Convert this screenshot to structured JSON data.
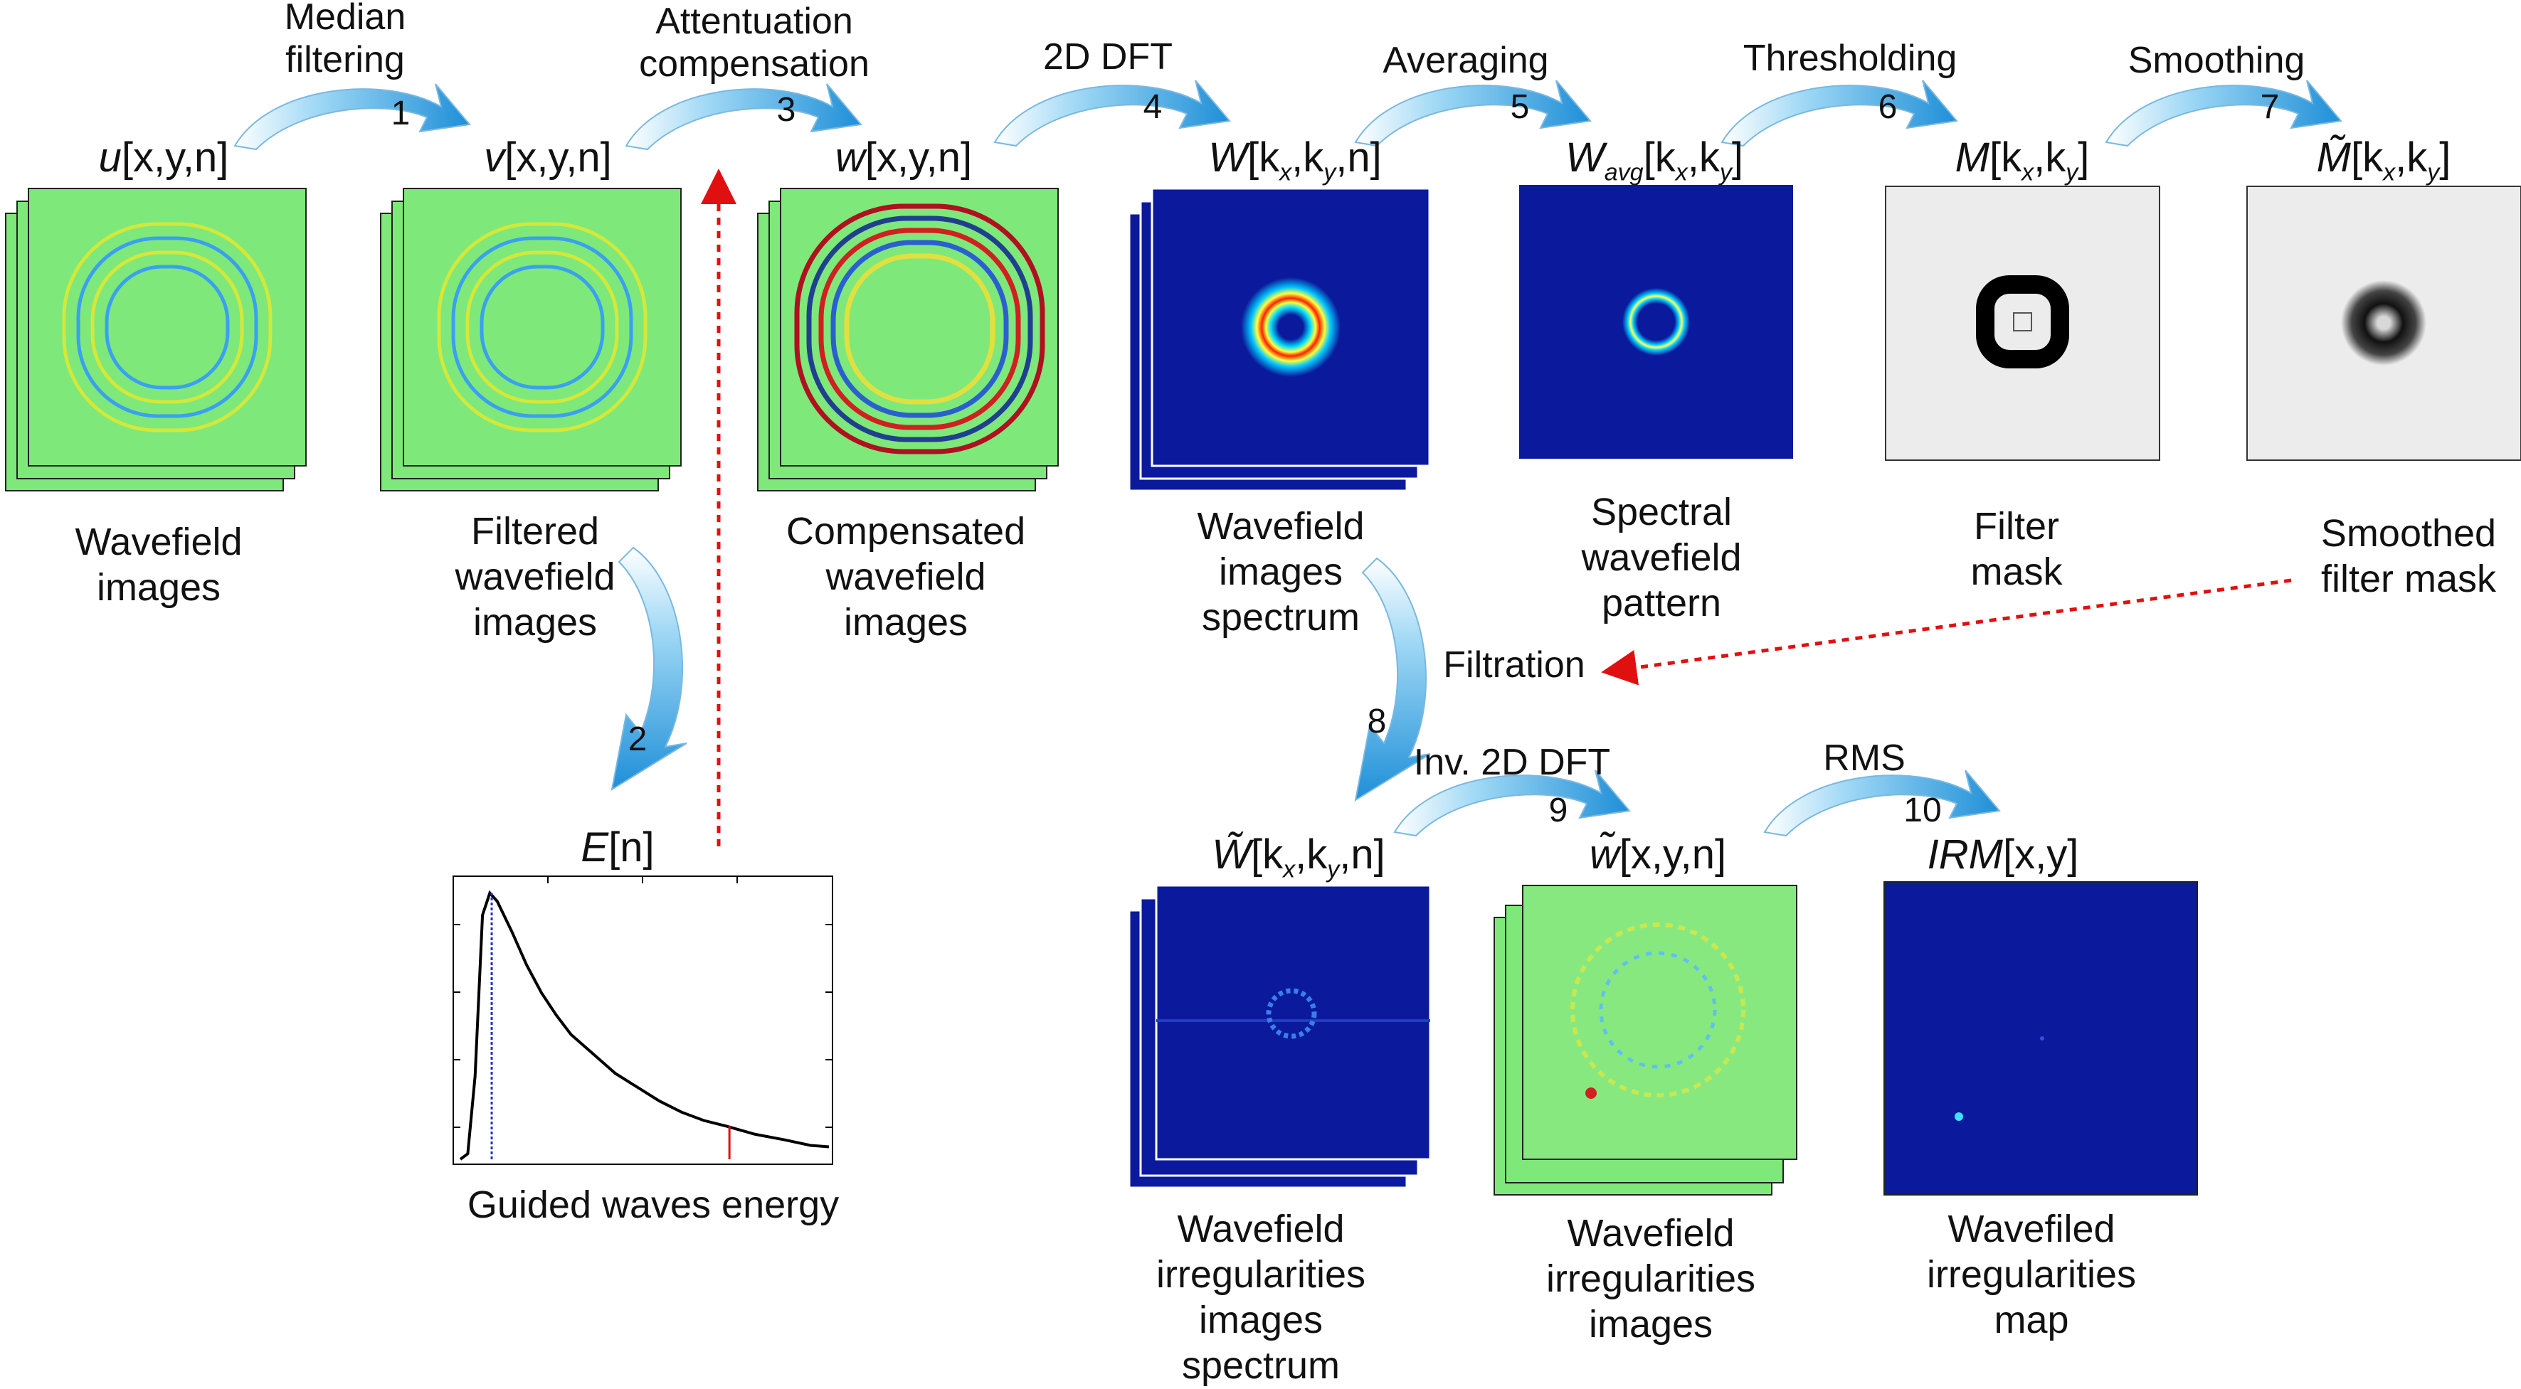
{
  "steps": [
    {
      "num": "1",
      "label": "Median\nfiltering"
    },
    {
      "num": "2",
      "label": ""
    },
    {
      "num": "3",
      "label": "Attentuation\ncompensation"
    },
    {
      "num": "4",
      "label": "2D DFT"
    },
    {
      "num": "5",
      "label": "Averaging"
    },
    {
      "num": "6",
      "label": "Thresholding"
    },
    {
      "num": "7",
      "label": "Smoothing"
    },
    {
      "num": "8",
      "label": ""
    },
    {
      "num": "9",
      "label": "Inv. 2D DFT"
    },
    {
      "num": "10",
      "label": "RMS"
    }
  ],
  "filtration_label": "Filtration",
  "nodes": {
    "u": {
      "base": "u",
      "args": "[x,y,n]",
      "caption": "Wavefield\nimages"
    },
    "v": {
      "base": "v",
      "args": "[x,y,n]",
      "caption": "Filtered\nwavefield\nimages"
    },
    "w": {
      "base": "w",
      "args": "[x,y,n]",
      "caption": "Compensated\nwavefield\nimages"
    },
    "W": {
      "base": "W",
      "args": "[k",
      "sub1": "x",
      "mid": ",k",
      "sub2": "y",
      "tail": ",n]",
      "caption": "Wavefield\nimages\nspectrum"
    },
    "Wavg": {
      "base": "W",
      "subbase": "avg",
      "args": "[k",
      "sub1": "x",
      "mid": ",k",
      "sub2": "y",
      "tail": "]",
      "caption": "Spectral\nwavefield\npattern"
    },
    "M": {
      "base": "M",
      "args": "[k",
      "sub1": "x",
      "mid": ",k",
      "sub2": "y",
      "tail": "]",
      "caption": "Filter\nmask"
    },
    "Mt": {
      "base": "M̃",
      "args": "[k",
      "sub1": "x",
      "mid": ",k",
      "sub2": "y",
      "tail": "]",
      "caption": "Smoothed\nfilter mask"
    },
    "E": {
      "base": "E",
      "args": "[n]",
      "caption": "Guided waves energy"
    },
    "Wt": {
      "base": "W̃",
      "args": "[k",
      "sub1": "x",
      "mid": ",k",
      "sub2": "y",
      "tail": ",n]",
      "caption": "Wavefield\nirregularities\nimages\nspectrum"
    },
    "wt": {
      "base": "w̃",
      "args": "[x,y,n]",
      "caption": "Wavefield\nirregularities\nimages"
    },
    "IRM": {
      "base": "IRM",
      "args": "[x,y]",
      "caption": "Wavefiled\nirregularities\nmap"
    }
  },
  "colors": {
    "wavefield_bg": "#7ee87a",
    "spectrum_bg": "#0b1a9c",
    "mask_bg": "#ececec",
    "arrow_blue": "#2a9be0",
    "dotted_red": "#e01010",
    "energy_curve": "#000000",
    "marker_blue": "#2030d0",
    "marker_red": "#e01010"
  },
  "energy_curve": [
    [
      0.0,
      0.0
    ],
    [
      0.02,
      0.02
    ],
    [
      0.04,
      0.3
    ],
    [
      0.06,
      0.88
    ],
    [
      0.08,
      0.96
    ],
    [
      0.1,
      0.93
    ],
    [
      0.14,
      0.82
    ],
    [
      0.18,
      0.7
    ],
    [
      0.22,
      0.6
    ],
    [
      0.26,
      0.52
    ],
    [
      0.3,
      0.45
    ],
    [
      0.36,
      0.38
    ],
    [
      0.42,
      0.31
    ],
    [
      0.48,
      0.26
    ],
    [
      0.54,
      0.21
    ],
    [
      0.6,
      0.17
    ],
    [
      0.66,
      0.14
    ],
    [
      0.72,
      0.12
    ],
    [
      0.8,
      0.09
    ],
    [
      0.88,
      0.07
    ],
    [
      0.95,
      0.05
    ],
    [
      1.0,
      0.045
    ]
  ],
  "energy_markers": {
    "blue_n": 0.085,
    "red_n": 0.73
  }
}
